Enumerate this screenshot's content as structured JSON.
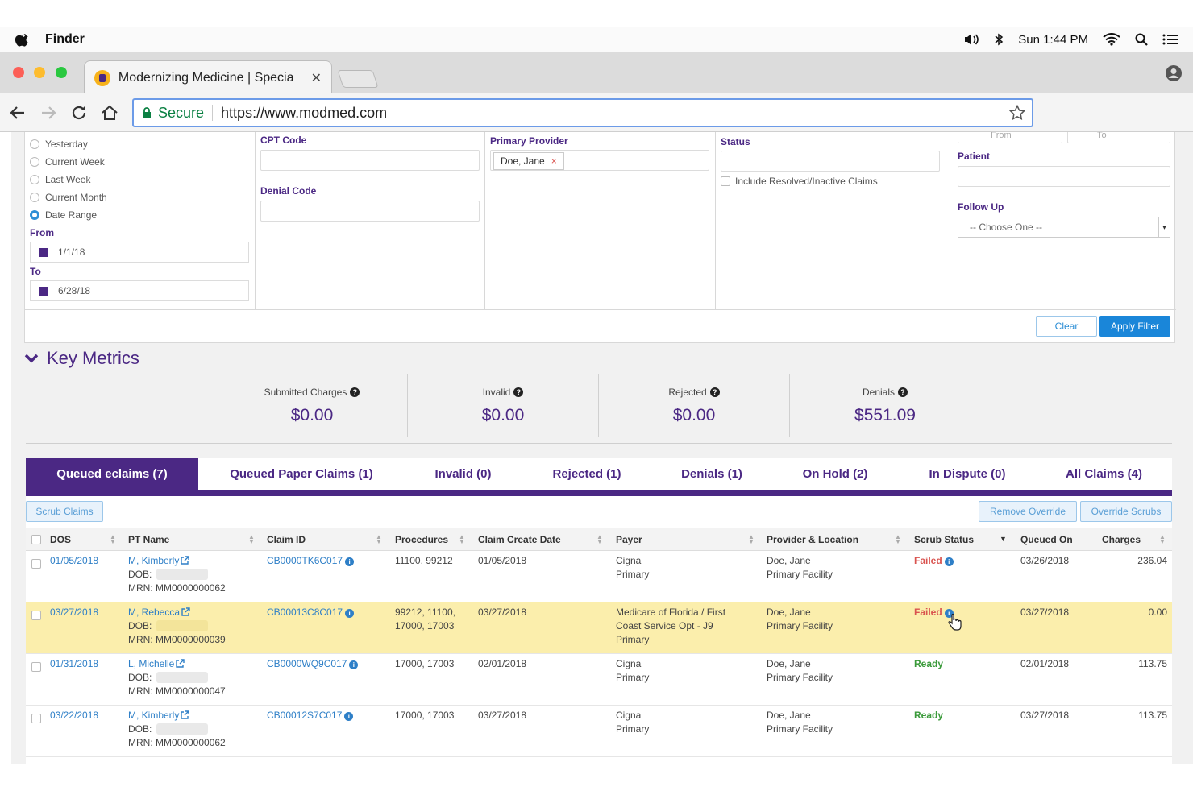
{
  "menubar": {
    "app": "Finder",
    "clock": "Sun 1:44 PM"
  },
  "browser": {
    "tab_title": "Modernizing Medicine | Specia",
    "secure_label": "Secure",
    "url": "https://www.modmed.com"
  },
  "filters": {
    "date_options": [
      "Yesterday",
      "Current Week",
      "Last Week",
      "Current Month",
      "Date Range"
    ],
    "from_label": "From",
    "from_value": "1/1/18",
    "to_label": "To",
    "to_value": "6/28/18",
    "cpt_label": "CPT Code",
    "denial_label": "Denial Code",
    "provider_label": "Primary Provider",
    "provider_chip": "Doe, Jane",
    "status_label": "Status",
    "include_resolved": "Include Resolved/Inactive Claims",
    "range_from_placeholder": "From",
    "range_to_placeholder": "To",
    "patient_label": "Patient",
    "followup_label": "Follow Up",
    "followup_value": "-- Choose One --",
    "clear_label": "Clear",
    "apply_label": "Apply Filter"
  },
  "metrics": {
    "title": "Key Metrics",
    "items": [
      {
        "label": "Submitted Charges",
        "value": "$0.00"
      },
      {
        "label": "Invalid",
        "value": "$0.00"
      },
      {
        "label": "Rejected",
        "value": "$0.00"
      },
      {
        "label": "Denials",
        "value": "$551.09"
      }
    ]
  },
  "tabs": [
    "Queued eclaims (7)",
    "Queued Paper Claims (1)",
    "Invalid (0)",
    "Rejected (1)",
    "Denials (1)",
    "On Hold (2)",
    "In Dispute (0)",
    "All Claims (4)"
  ],
  "actions": {
    "scrub": "Scrub Claims",
    "remove_override": "Remove Override",
    "override_scrubs": "Override Scrubs"
  },
  "columns": [
    "DOS",
    "PT Name",
    "Claim ID",
    "Procedures",
    "Claim Create Date",
    "Payer",
    "Provider & Location",
    "Scrub Status",
    "Queued On",
    "Charges"
  ],
  "rows": [
    {
      "dos": "01/05/2018",
      "pt_name": "M, Kimberly",
      "dob_label": "DOB:",
      "mrn": "MRN: MM0000000062",
      "claim_id": "CB0000TK6C017",
      "proc1": "11100, 99212",
      "proc2": "",
      "create_date": "01/05/2018",
      "payer1": "Cigna",
      "payer2": "Primary",
      "payer3": "",
      "prov1": "Doe, Jane",
      "prov2": "Primary Facility",
      "status": "Failed",
      "queued": "03/26/2018",
      "charges": "236.04"
    },
    {
      "dos": "03/27/2018",
      "pt_name": "M, Rebecca",
      "dob_label": "DOB:",
      "mrn": "MRN: MM0000000039",
      "claim_id": "CB00013C8C017",
      "proc1": "99212, 11100,",
      "proc2": "17000, 17003",
      "create_date": "03/27/2018",
      "payer1": "Medicare of Florida / First",
      "payer2": "Coast Service Opt - J9",
      "payer3": "Primary",
      "prov1": "Doe, Jane",
      "prov2": "Primary Facility",
      "status": "Failed",
      "queued": "03/27/2018",
      "charges": "0.00"
    },
    {
      "dos": "01/31/2018",
      "pt_name": "L, Michelle",
      "dob_label": "DOB:",
      "mrn": "MRN: MM0000000047",
      "claim_id": "CB0000WQ9C017",
      "proc1": "17000, 17003",
      "proc2": "",
      "create_date": "02/01/2018",
      "payer1": "Cigna",
      "payer2": "Primary",
      "payer3": "",
      "prov1": "Doe, Jane",
      "prov2": "Primary Facility",
      "status": "Ready",
      "queued": "02/01/2018",
      "charges": "113.75"
    },
    {
      "dos": "03/22/2018",
      "pt_name": "M, Kimberly",
      "dob_label": "DOB:",
      "mrn": "MRN: MM0000000062",
      "claim_id": "CB00012S7C017",
      "proc1": "17000, 17003",
      "proc2": "",
      "create_date": "03/27/2018",
      "payer1": "Cigna",
      "payer2": "Primary",
      "payer3": "",
      "prov1": "Doe, Jane",
      "prov2": "Primary Facility",
      "status": "Ready",
      "queued": "03/27/2018",
      "charges": "113.75"
    }
  ]
}
